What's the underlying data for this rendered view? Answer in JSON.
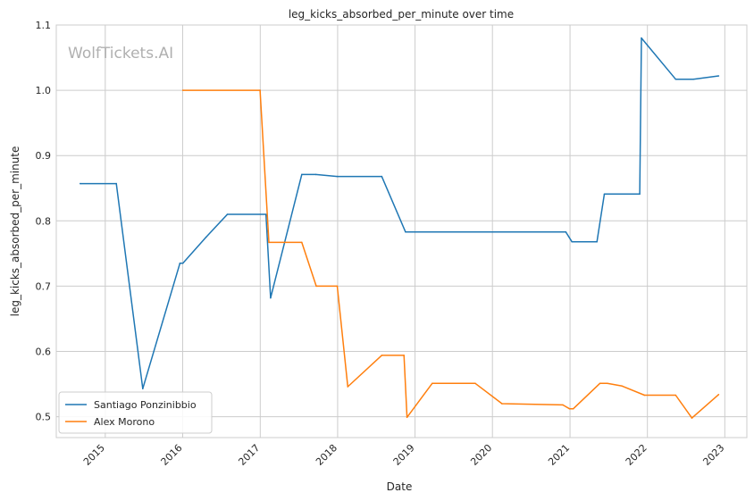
{
  "chart_data": {
    "type": "line",
    "title": "leg_kicks_absorbed_per_minute over time",
    "xlabel": "Date",
    "ylabel": "leg_kicks_absorbed_per_minute",
    "watermark": "WolfTickets.AI",
    "x_ticks": [
      "2015",
      "2016",
      "2017",
      "2018",
      "2019",
      "2020",
      "2021",
      "2022",
      "2023"
    ],
    "y_ticks": [
      "0.5",
      "0.6",
      "0.7",
      "0.8",
      "0.9",
      "1.0",
      "1.1"
    ],
    "xlim": [
      "2014-05-15",
      "2023-04-15"
    ],
    "ylim": [
      0.468,
      1.1
    ],
    "grid": true,
    "legend_position": "lower-left",
    "series": [
      {
        "name": "Santiago Ponzinibbio",
        "color": "#1f77b4",
        "points": [
          [
            "2014-09-05",
            0.857
          ],
          [
            "2015-02-22",
            0.857
          ],
          [
            "2015-06-27",
            0.543
          ],
          [
            "2015-12-19",
            0.735
          ],
          [
            "2016-01-02",
            0.735
          ],
          [
            "2016-04-20",
            0.775
          ],
          [
            "2016-07-30",
            0.81
          ],
          [
            "2017-01-28",
            0.81
          ],
          [
            "2017-02-19",
            0.682
          ],
          [
            "2017-07-16",
            0.871
          ],
          [
            "2017-09-20",
            0.871
          ],
          [
            "2017-12-30",
            0.868
          ],
          [
            "2018-07-28",
            0.868
          ],
          [
            "2018-11-17",
            0.783
          ],
          [
            "2020-12-12",
            0.783
          ],
          [
            "2021-01-10",
            0.768
          ],
          [
            "2021-05-08",
            0.768
          ],
          [
            "2021-06-12",
            0.841
          ],
          [
            "2021-11-26",
            0.841
          ],
          [
            "2021-12-04",
            1.08
          ],
          [
            "2022-05-14",
            1.017
          ],
          [
            "2022-08-06",
            1.017
          ],
          [
            "2022-12-03",
            1.022
          ]
        ]
      },
      {
        "name": "Alex Morono",
        "color": "#ff7f0e",
        "points": [
          [
            "2016-01-02",
            1.0
          ],
          [
            "2016-12-31",
            1.0
          ],
          [
            "2017-02-11",
            0.767
          ],
          [
            "2017-07-16",
            0.767
          ],
          [
            "2017-09-22",
            0.7
          ],
          [
            "2017-12-30",
            0.7
          ],
          [
            "2018-02-18",
            0.546
          ],
          [
            "2018-07-28",
            0.594
          ],
          [
            "2018-11-10",
            0.594
          ],
          [
            "2018-11-24",
            0.499
          ],
          [
            "2019-03-23",
            0.551
          ],
          [
            "2019-10-12",
            0.551
          ],
          [
            "2020-02-15",
            0.52
          ],
          [
            "2020-11-28",
            0.518
          ],
          [
            "2020-12-30",
            0.512
          ],
          [
            "2021-01-16",
            0.512
          ],
          [
            "2021-05-22",
            0.551
          ],
          [
            "2021-06-26",
            0.551
          ],
          [
            "2021-09-04",
            0.547
          ],
          [
            "2021-12-18",
            0.533
          ],
          [
            "2022-05-14",
            0.533
          ],
          [
            "2022-07-30",
            0.498
          ],
          [
            "2022-12-03",
            0.534
          ]
        ]
      }
    ]
  }
}
